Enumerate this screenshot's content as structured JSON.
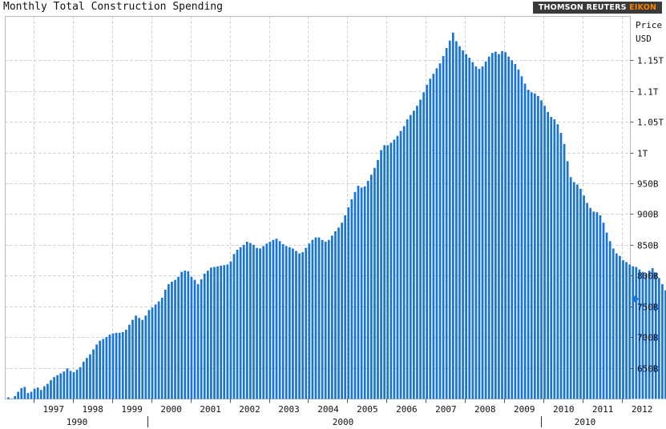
{
  "header": {
    "title": "Monthly Total Construction Spending",
    "brand_main": "THOMSON REUTERS ",
    "brand_accent": "EIKON",
    "brand_accent_color": "#ff8000"
  },
  "chart_data": {
    "type": "bar",
    "title": "Monthly Total Construction Spending",
    "ylabel": "Price",
    "yunit": "USD",
    "ylim": [
      600,
      1210
    ],
    "y_tick_values": [
      650,
      700,
      750,
      800,
      850,
      900,
      950,
      1000,
      1050,
      1100,
      1150
    ],
    "y_tick_labels": [
      "650B",
      "700B",
      "750B",
      "800B",
      "850B",
      "900B",
      "950B",
      "1T",
      "1.05T",
      "1.1T",
      "1.15T"
    ],
    "y_tick_label_above": [
      "Price",
      "USD"
    ],
    "x_tick_labels": [
      "1997",
      "1998",
      "1999",
      "2000",
      "2001",
      "2002",
      "2003",
      "2004",
      "2005",
      "2006",
      "2007",
      "2008",
      "2009",
      "2010",
      "2011",
      "2012"
    ],
    "x_decade_labels": [
      "1990",
      "2000",
      "2010"
    ],
    "last_value_marker": 762,
    "bar_color": "#1874d6",
    "grid": true,
    "x_start": "1996-05",
    "x_end": "2011-04",
    "values": [
      602,
      600,
      604,
      611,
      617,
      619,
      609,
      611,
      616,
      618,
      614,
      620,
      624,
      630,
      635,
      638,
      641,
      644,
      649,
      645,
      643,
      647,
      651,
      660,
      666,
      672,
      680,
      688,
      694,
      697,
      700,
      704,
      706,
      707,
      707,
      708,
      712,
      720,
      728,
      735,
      731,
      728,
      735,
      744,
      748,
      753,
      758,
      764,
      777,
      786,
      790,
      793,
      798,
      806,
      808,
      807,
      798,
      793,
      786,
      794,
      803,
      808,
      813,
      814,
      815,
      816,
      817,
      818,
      823,
      835,
      842,
      846,
      850,
      855,
      853,
      850,
      845,
      844,
      848,
      852,
      855,
      858,
      860,
      856,
      851,
      848,
      846,
      844,
      840,
      836,
      838,
      845,
      852,
      858,
      862,
      862,
      858,
      855,
      858,
      865,
      872,
      878,
      886,
      898,
      911,
      924,
      936,
      946,
      943,
      945,
      954,
      964,
      975,
      988,
      1004,
      1012,
      1012,
      1016,
      1021,
      1027,
      1035,
      1043,
      1054,
      1061,
      1068,
      1076,
      1086,
      1098,
      1110,
      1120,
      1128,
      1137,
      1145,
      1157,
      1170,
      1182,
      1195,
      1181,
      1173,
      1166,
      1160,
      1154,
      1147,
      1140,
      1136,
      1140,
      1148,
      1156,
      1162,
      1164,
      1160,
      1165,
      1163,
      1156,
      1150,
      1144,
      1135,
      1124,
      1112,
      1102,
      1098,
      1096,
      1092,
      1085,
      1076,
      1066,
      1058,
      1054,
      1046,
      1032,
      1014,
      986,
      960,
      952,
      948,
      941,
      930,
      918,
      910,
      904,
      903,
      898,
      886,
      870,
      856,
      844,
      836,
      832,
      825,
      822,
      818,
      815,
      814,
      810,
      806,
      803,
      808,
      812,
      804,
      796,
      786,
      776,
      770,
      768,
      762
    ]
  }
}
